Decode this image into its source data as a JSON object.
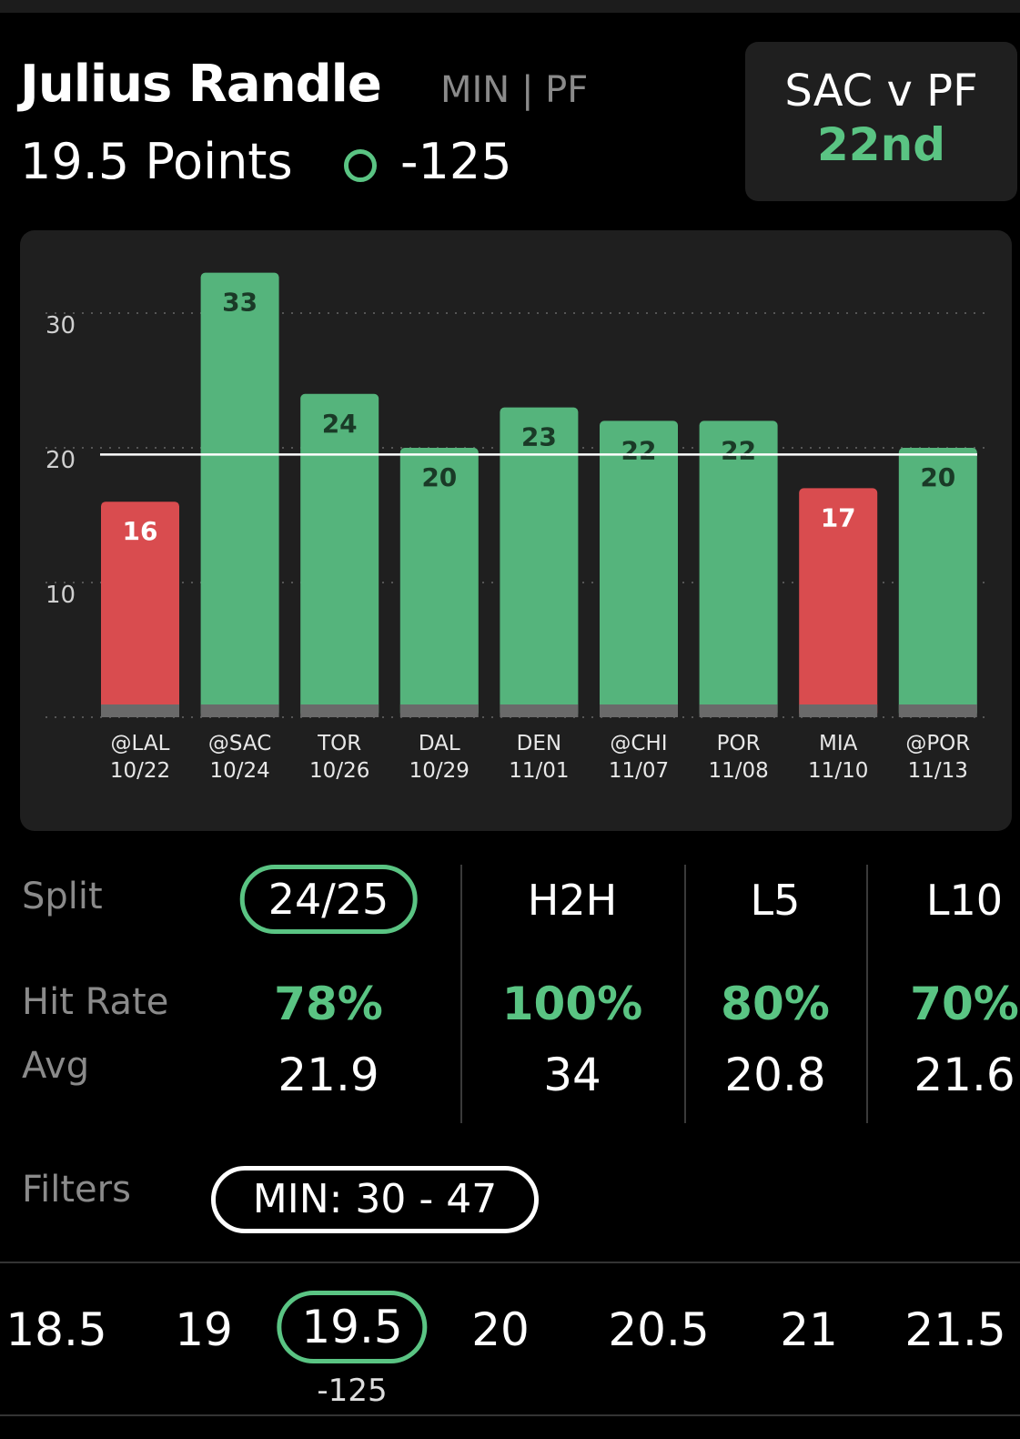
{
  "header": {
    "player_name": "Julius Randle",
    "meta": "MIN | PF",
    "prop_line": "19.5 Points",
    "odds": "-125",
    "matchup": "SAC v PF",
    "matchup_rank": "22nd",
    "accent_color": "#5ac483",
    "over_icon": "circle-icon"
  },
  "chart_data": {
    "type": "bar",
    "categories": [
      "@LAL 10/22",
      "@SAC 10/24",
      "TOR 10/26",
      "DAL 10/29",
      "DEN 11/01",
      "@CHI 11/07",
      "POR 11/08",
      "MIA 11/10",
      "@POR 11/13"
    ],
    "category_opponents": [
      "@LAL",
      "@SAC",
      "TOR",
      "DAL",
      "DEN",
      "@CHI",
      "POR",
      "MIA",
      "@POR"
    ],
    "category_dates": [
      "10/22",
      "10/24",
      "10/26",
      "10/29",
      "11/01",
      "11/07",
      "11/08",
      "11/10",
      "11/13"
    ],
    "values": [
      16,
      33,
      24,
      20,
      23,
      22,
      22,
      17,
      20
    ],
    "reference_line": 19.5,
    "ylim": [
      0,
      35
    ],
    "yticks": [
      10,
      20,
      30
    ],
    "grid": true,
    "colors": {
      "over": "#55b47c",
      "under": "#d94c4f",
      "base": "#6a6a6a"
    }
  },
  "splits": {
    "split_label": "Split",
    "hit_label": "Hit Rate",
    "avg_label": "Avg",
    "columns": [
      {
        "head": "24/25",
        "hit": "78%",
        "avg": "21.9"
      },
      {
        "head": "H2H",
        "hit": "100%",
        "avg": "34"
      },
      {
        "head": "L5",
        "hit": "80%",
        "avg": "20.8"
      },
      {
        "head": "L10",
        "hit": "70%",
        "avg": "21.6"
      }
    ]
  },
  "filters": {
    "label": "Filters",
    "pill": "MIN: 30 - 47"
  },
  "lines": {
    "options": [
      "18.5",
      "19",
      "19.5",
      "20",
      "20.5",
      "21",
      "21.5"
    ],
    "selected": "19.5",
    "selected_odds": "-125"
  }
}
